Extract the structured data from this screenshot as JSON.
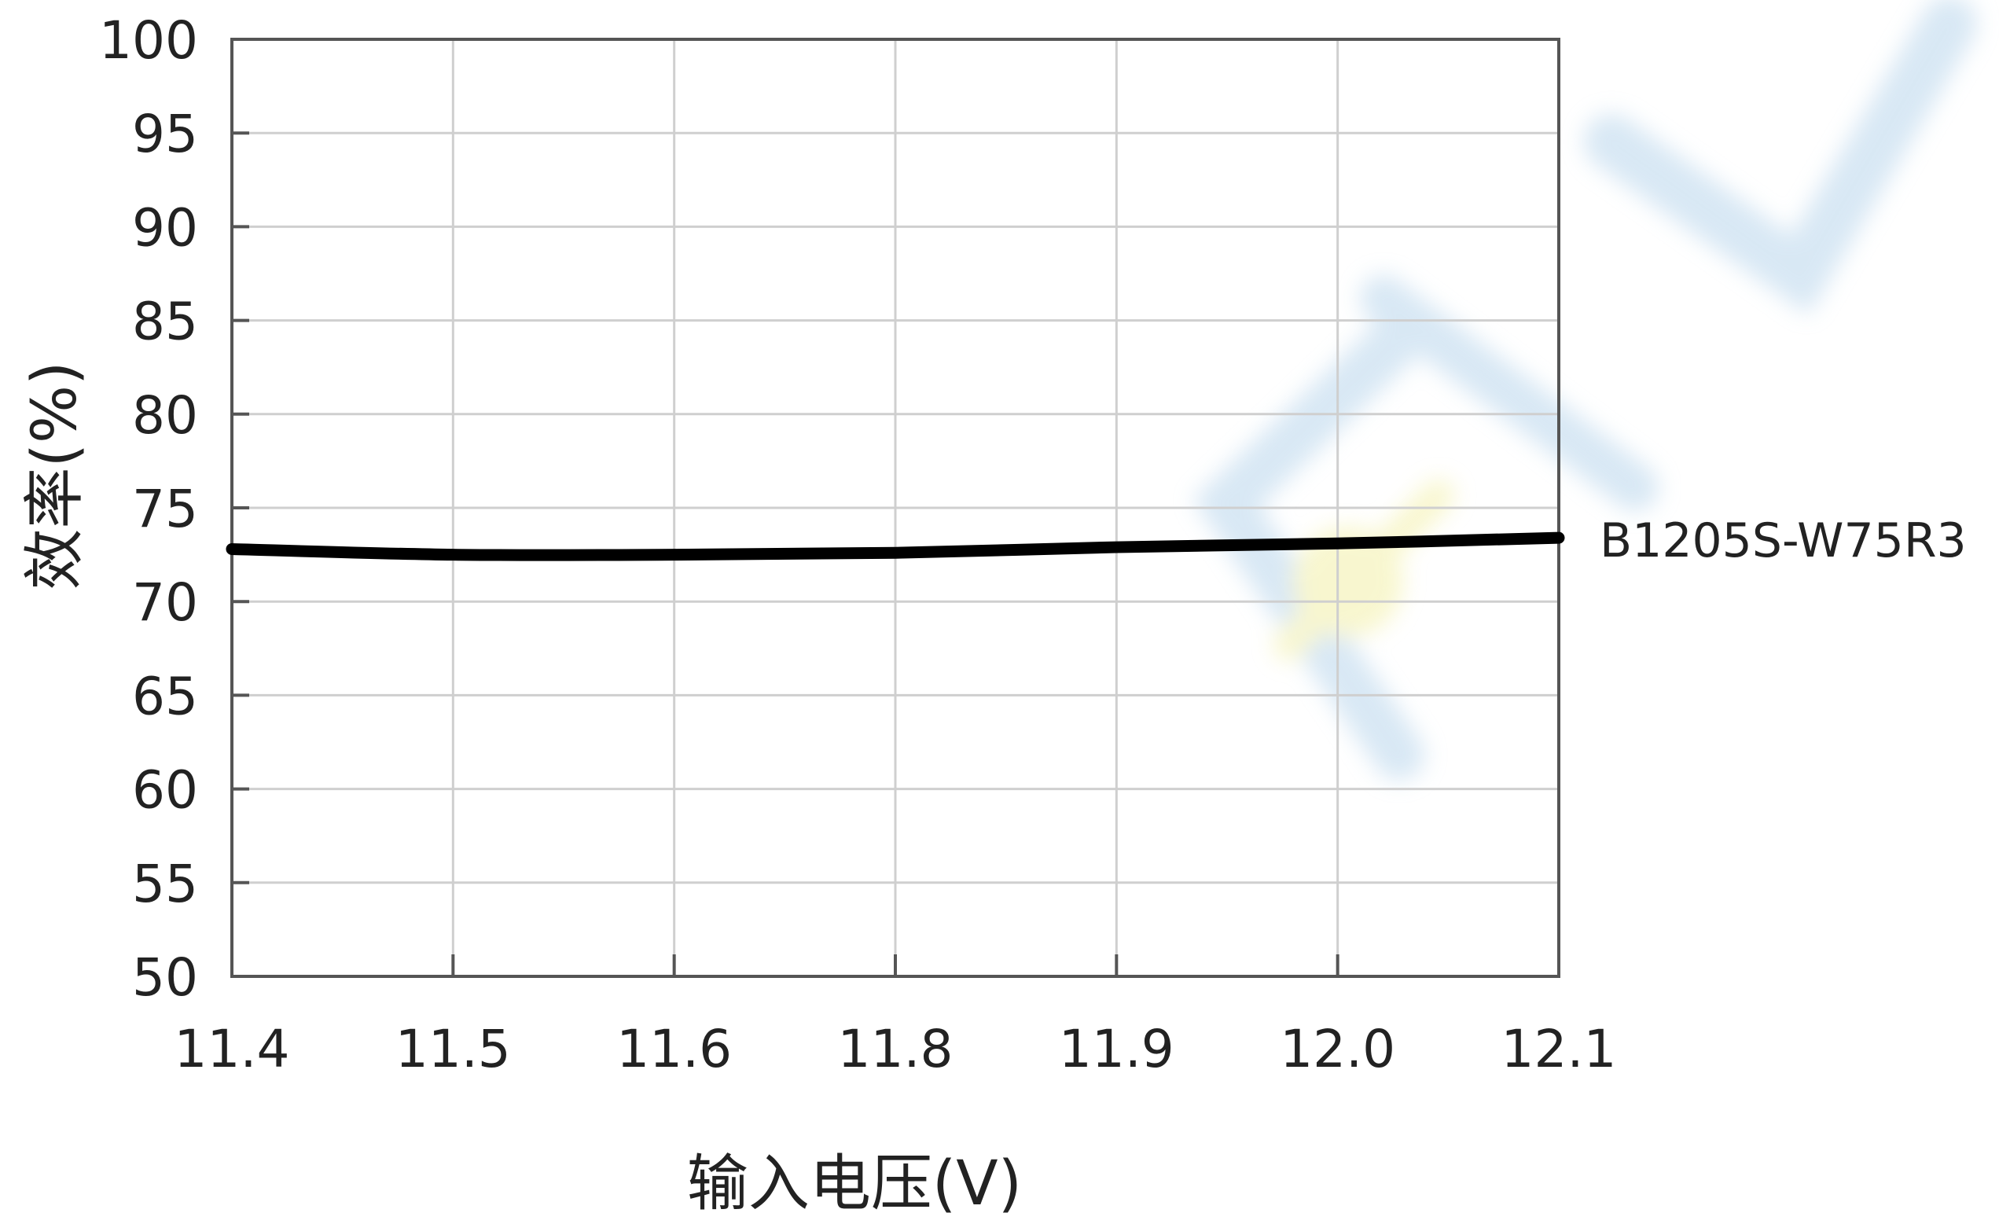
{
  "chart_data": {
    "type": "line",
    "xlabel": "输入电压(V)",
    "ylabel": "效率(%)",
    "x_ticks": [
      "11.4",
      "11.5",
      "11.6",
      "11.8",
      "11.9",
      "12.0",
      "12.1"
    ],
    "y_ticks": [
      "100",
      "95",
      "90",
      "85",
      "80",
      "75",
      "70",
      "65",
      "60",
      "55",
      "50"
    ],
    "ylim": [
      50,
      100
    ],
    "grid": true,
    "series": [
      {
        "name": "B1205S-W75R3",
        "x": [
          "11.4",
          "11.5",
          "11.6",
          "11.8",
          "11.9",
          "12.0",
          "12.1"
        ],
        "values": [
          72.8,
          72.5,
          72.5,
          72.6,
          72.9,
          73.1,
          73.4
        ]
      }
    ],
    "colors": {
      "line": "#000000",
      "grid": "#cfcfcf",
      "axis": "#555555"
    }
  }
}
